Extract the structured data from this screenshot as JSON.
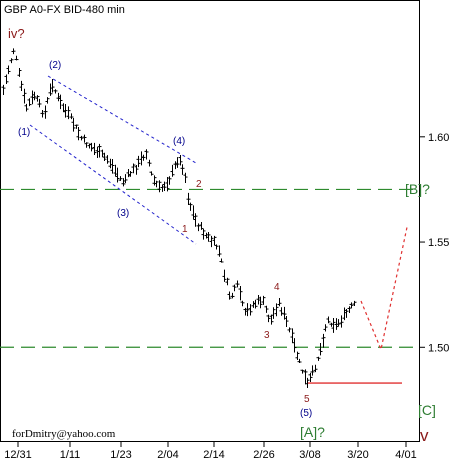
{
  "chart_data": {
    "type": "ohlc",
    "title": "GBP A0-FX BID-480 min",
    "footer": "forDmitry@yahoo.com",
    "x_ticks": [
      "12/31",
      "1/11",
      "1/23",
      "2/04",
      "2/14",
      "2/26",
      "3/08",
      "3/20",
      "4/01"
    ],
    "y_ticks": [
      "1.60",
      "1.55",
      "1.50"
    ],
    "ylim": [
      1.455,
      1.665
    ],
    "key_levels": [
      1.575,
      1.5
    ],
    "support_level": 1.483,
    "projection": [
      {
        "x": "3/20",
        "y": 1.522
      },
      {
        "x": "",
        "y": 1.499
      },
      {
        "x": "",
        "y": 1.557
      }
    ],
    "wave_labels": [
      {
        "text": "iv?",
        "color": "#8b1a1a"
      },
      {
        "text": "(2)",
        "color": "#00008b"
      },
      {
        "text": "(1)",
        "color": "#00008b"
      },
      {
        "text": "(3)",
        "color": "#00008b"
      },
      {
        "text": "(4)",
        "color": "#00008b"
      },
      {
        "text": "2",
        "color": "#8b1a1a"
      },
      {
        "text": "1",
        "color": "#8b1a1a"
      },
      {
        "text": "4",
        "color": "#8b1a1a"
      },
      {
        "text": "3",
        "color": "#8b1a1a"
      },
      {
        "text": "5",
        "color": "#8b1a1a"
      },
      {
        "text": "(5)",
        "color": "#00008b"
      },
      {
        "text": "[A]?",
        "color": "#2e7d32"
      },
      {
        "text": "[B]?",
        "color": "#2e7d32"
      },
      {
        "text": "[C]",
        "color": "#2e7d32"
      },
      {
        "text": "v",
        "color": "#8b1a1a"
      }
    ],
    "colors": {
      "bars": "#000000",
      "key_level": "#2e8b2e",
      "channel": "#2222cc",
      "support": "#e03030",
      "projection": "#e03030"
    }
  }
}
